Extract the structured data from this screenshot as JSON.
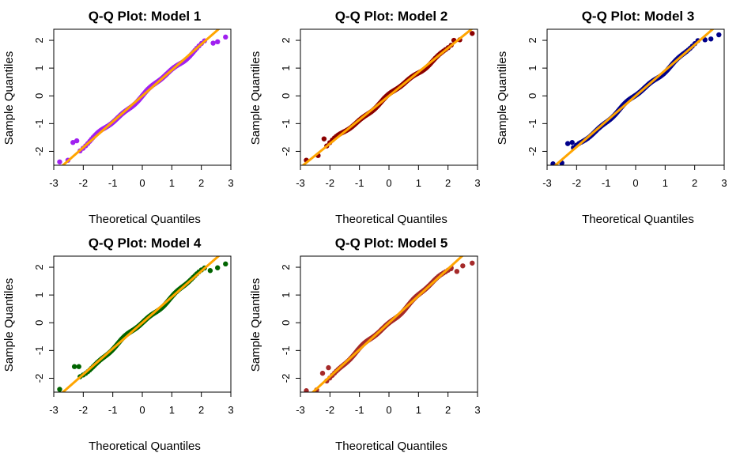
{
  "figure": {
    "background": "#ffffff",
    "ref_line_color": "#FFA500"
  },
  "chart_data": [
    {
      "type": "scatter",
      "title": "Q-Q Plot: Model 1",
      "xlabel": "Theoretical Quantiles",
      "ylabel": "Sample Quantiles",
      "xlim": [
        -3,
        3
      ],
      "ylim": [
        -2.5,
        2.4
      ],
      "xticks": [
        -3,
        -2,
        -1,
        0,
        1,
        2,
        3
      ],
      "yticks": [
        -2,
        -1,
        0,
        1,
        2
      ],
      "point_color": "#A020F0",
      "reference_line": {
        "intercept": 0,
        "slope": 0.93
      },
      "tail_points": [
        [
          -2.8,
          -2.38
        ],
        [
          -2.52,
          -2.32
        ],
        [
          -2.35,
          -1.68
        ],
        [
          -2.22,
          -1.62
        ],
        [
          2.4,
          1.9
        ],
        [
          2.55,
          1.95
        ],
        [
          2.82,
          2.12
        ]
      ]
    },
    {
      "type": "scatter",
      "title": "Q-Q Plot: Model 2",
      "xlabel": "Theoretical Quantiles",
      "ylabel": "Sample Quantiles",
      "xlim": [
        -3,
        3
      ],
      "ylim": [
        -2.5,
        2.4
      ],
      "xticks": [
        -3,
        -2,
        -1,
        0,
        1,
        2,
        3
      ],
      "yticks": [
        -2,
        -1,
        0,
        1,
        2
      ],
      "point_color": "#8B0000",
      "reference_line": {
        "intercept": 0,
        "slope": 0.86
      },
      "tail_points": [
        [
          -2.8,
          -2.32
        ],
        [
          -2.4,
          -2.15
        ],
        [
          -2.2,
          -1.55
        ],
        [
          2.2,
          2.0
        ],
        [
          2.4,
          2.02
        ],
        [
          2.82,
          2.25
        ]
      ]
    },
    {
      "type": "scatter",
      "title": "Q-Q Plot: Model 3",
      "xlabel": "Theoretical Quantiles",
      "ylabel": "Sample Quantiles",
      "xlim": [
        -3,
        3
      ],
      "ylim": [
        -2.5,
        2.4
      ],
      "xticks": [
        -3,
        -2,
        -1,
        0,
        1,
        2,
        3
      ],
      "yticks": [
        -2,
        -1,
        0,
        1,
        2
      ],
      "point_color": "#00008B",
      "reference_line": {
        "intercept": 0,
        "slope": 0.92
      },
      "tail_points": [
        [
          -2.8,
          -2.45
        ],
        [
          -2.5,
          -2.42
        ],
        [
          -2.3,
          -1.72
        ],
        [
          -2.15,
          -1.68
        ],
        [
          2.35,
          2.02
        ],
        [
          2.55,
          2.05
        ],
        [
          2.82,
          2.2
        ]
      ]
    },
    {
      "type": "scatter",
      "title": "Q-Q Plot: Model 4",
      "xlabel": "Theoretical Quantiles",
      "ylabel": "Sample Quantiles",
      "xlim": [
        -3,
        3
      ],
      "ylim": [
        -2.5,
        2.4
      ],
      "xticks": [
        -3,
        -2,
        -1,
        0,
        1,
        2,
        3
      ],
      "yticks": [
        -2,
        -1,
        0,
        1,
        2
      ],
      "point_color": "#006400",
      "reference_line": {
        "intercept": 0,
        "slope": 0.93
      },
      "tail_points": [
        [
          -2.8,
          -2.4
        ],
        [
          -2.3,
          -1.58
        ],
        [
          -2.15,
          -1.58
        ],
        [
          2.3,
          1.88
        ],
        [
          2.55,
          1.98
        ],
        [
          2.82,
          2.12
        ]
      ]
    },
    {
      "type": "scatter",
      "title": "Q-Q Plot: Model 5",
      "xlabel": "Theoretical Quantiles",
      "ylabel": "Sample Quantiles",
      "xlim": [
        -3,
        3
      ],
      "ylim": [
        -2.5,
        2.4
      ],
      "xticks": [
        -3,
        -2,
        -1,
        0,
        1,
        2,
        3
      ],
      "yticks": [
        -2,
        -1,
        0,
        1,
        2
      ],
      "point_color": "#A52A2A",
      "reference_line": {
        "intercept": 0,
        "slope": 0.97
      },
      "tail_points": [
        [
          -2.8,
          -2.45
        ],
        [
          -2.45,
          -2.42
        ],
        [
          -2.25,
          -1.82
        ],
        [
          -2.05,
          -1.62
        ],
        [
          2.1,
          1.95
        ],
        [
          2.3,
          1.85
        ],
        [
          2.5,
          2.05
        ],
        [
          2.82,
          2.15
        ]
      ]
    }
  ]
}
